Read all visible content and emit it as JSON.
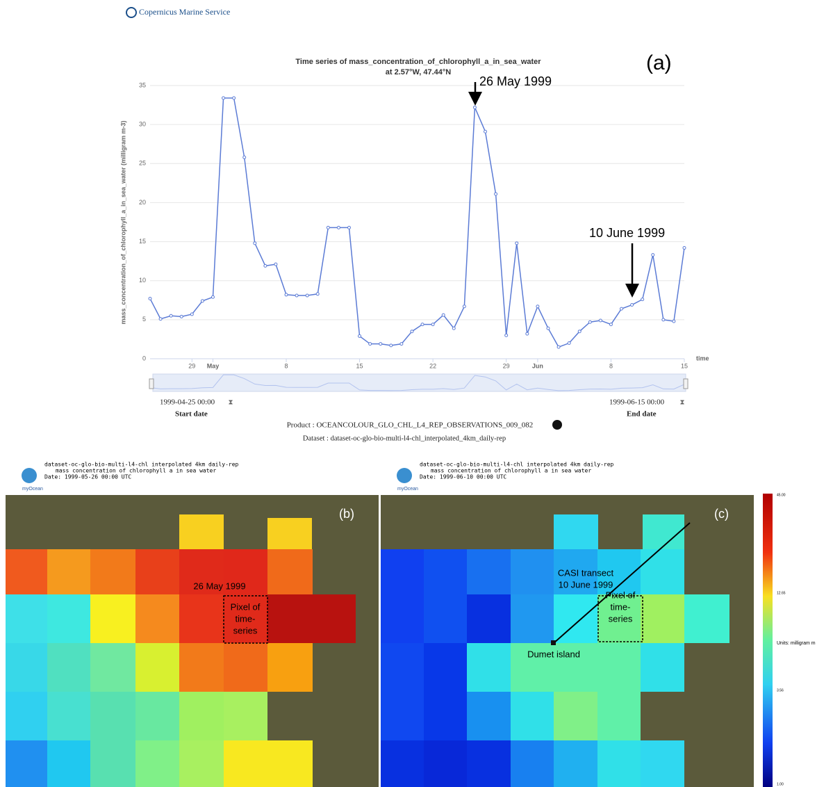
{
  "header": {
    "brand": "Copernicus Marine Service"
  },
  "chart_data": {
    "type": "line",
    "title": "Time series of mass_concentration_of_chlorophyll_a_in_sea_water",
    "subtitle": "at 2.57°W, 47.44°N",
    "ylabel": "mass_concentration_of_chlorophyll_a_in_sea_water (milligram m-3)",
    "xlabel": "time",
    "x": [
      "1999-04-25",
      "1999-04-26",
      "1999-04-27",
      "1999-04-28",
      "1999-04-29",
      "1999-04-30",
      "1999-05-01",
      "1999-05-02",
      "1999-05-03",
      "1999-05-04",
      "1999-05-05",
      "1999-05-06",
      "1999-05-07",
      "1999-05-08",
      "1999-05-09",
      "1999-05-10",
      "1999-05-11",
      "1999-05-12",
      "1999-05-13",
      "1999-05-14",
      "1999-05-15",
      "1999-05-16",
      "1999-05-17",
      "1999-05-18",
      "1999-05-19",
      "1999-05-20",
      "1999-05-21",
      "1999-05-22",
      "1999-05-23",
      "1999-05-24",
      "1999-05-25",
      "1999-05-26",
      "1999-05-27",
      "1999-05-28",
      "1999-05-29",
      "1999-05-30",
      "1999-05-31",
      "1999-06-01",
      "1999-06-02",
      "1999-06-03",
      "1999-06-04",
      "1999-06-05",
      "1999-06-06",
      "1999-06-07",
      "1999-06-08",
      "1999-06-09",
      "1999-06-10",
      "1999-06-11",
      "1999-06-12",
      "1999-06-13",
      "1999-06-14",
      "1999-06-15"
    ],
    "values": [
      7.7,
      5.1,
      5.5,
      5.4,
      5.7,
      7.4,
      7.9,
      33.4,
      33.4,
      25.8,
      14.8,
      11.9,
      12.1,
      8.2,
      8.1,
      8.1,
      8.3,
      16.8,
      16.8,
      16.8,
      2.9,
      1.9,
      1.9,
      1.7,
      1.9,
      3.5,
      4.4,
      4.4,
      5.6,
      3.9,
      6.7,
      32.2,
      29.1,
      21.1,
      3.0,
      14.8,
      3.2,
      6.7,
      3.9,
      1.5,
      2.0,
      3.5,
      4.7,
      4.9,
      4.4,
      6.4,
      6.9,
      7.6,
      13.3,
      5.0,
      4.8,
      14.2
    ],
    "color": "#5b7bd5",
    "ylim": [
      0,
      35
    ],
    "yticks": [
      0,
      5,
      10,
      15,
      20,
      25,
      30,
      35
    ],
    "xlim": [
      "1999-04-25",
      "1999-06-15"
    ],
    "xticks": [
      {
        "value": "1999-04-29",
        "label": "29"
      },
      {
        "value": "1999-05-01",
        "label": "May"
      },
      {
        "value": "1999-05-08",
        "label": "8"
      },
      {
        "value": "1999-05-15",
        "label": "15"
      },
      {
        "value": "1999-05-22",
        "label": "22"
      },
      {
        "value": "1999-05-29",
        "label": "29"
      },
      {
        "value": "1999-06-01",
        "label": "Jun"
      },
      {
        "value": "1999-06-08",
        "label": "8"
      },
      {
        "value": "1999-06-15",
        "label": "15"
      }
    ],
    "grid": true,
    "annotations": [
      "(a)",
      "26 May 1999",
      "10 June 1999"
    ]
  },
  "controls": {
    "start_date": "1999-04-25 00:00",
    "start_label": "Start date",
    "end_date": "1999-06-15 00:00",
    "end_label": "End date",
    "product": "Product : OCEANCOLOUR_GLO_CHL_L4_REP_OBSERVATIONS_009_082",
    "dataset": "Dataset : dataset-oc-glo-bio-multi-l4-chl_interpolated_4km_daily-rep"
  },
  "maps": [
    {
      "header": [
        "dataset-oc-glo-bio-multi-l4-chl interpolated 4km daily-rep",
        "mass concentration of chlorophyll a in sea water",
        "Date: 1999-05-26 00:00 UTC"
      ],
      "logo": "myOcean",
      "panel": "(b)",
      "annotations": [
        "26 May 1999",
        "Pixel of",
        "time-",
        "series"
      ]
    },
    {
      "header": [
        "dataset-oc-glo-bio-multi-l4-chl interpolated 4km daily-rep",
        "mass concentration of chlorophyll a in sea water",
        "Date: 1999-06-10 00:00 UTC"
      ],
      "logo": "myOcean",
      "panel": "(c)",
      "annotations": [
        "CASI transect",
        "10 June 1999",
        "Pixel of",
        "time-",
        "series",
        "Dumet island"
      ]
    }
  ],
  "colorbar": {
    "labels": [
      "45.00",
      "12.65",
      "Units: milligram m",
      "3.56",
      "1.00"
    ]
  }
}
